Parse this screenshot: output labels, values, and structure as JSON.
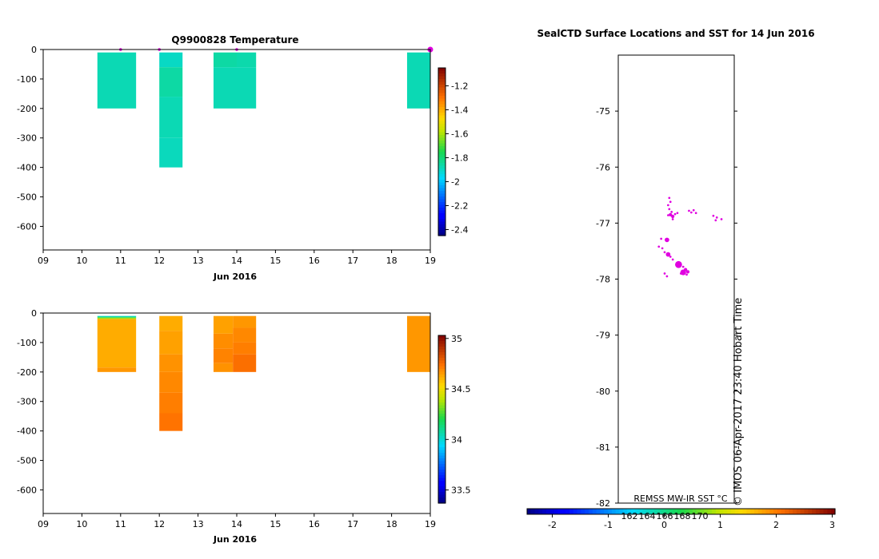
{
  "chart_data": [
    {
      "type": "heatmap",
      "title": "Q9900828  Temperature",
      "xlabel": "Jun 2016",
      "ylabel": "",
      "x_ticks": [
        "09",
        "10",
        "11",
        "12",
        "13",
        "14",
        "15",
        "16",
        "17",
        "18",
        "19"
      ],
      "xlim": [
        9,
        19
      ],
      "y_ticks": [
        0,
        -100,
        -200,
        -300,
        -400,
        -500,
        -600
      ],
      "ylim": [
        -680,
        0
      ],
      "colorbar": {
        "ticks": [
          -1.2,
          -1.4,
          -1.6,
          -1.8,
          -2,
          -2.2,
          -2.4
        ],
        "range": [
          -2.45,
          -1.05
        ]
      },
      "profile_markers_day": [
        11.0,
        12.0,
        14.0,
        19.0
      ],
      "profiles": [
        {
          "x0": 10.4,
          "x1": 11.4,
          "cells": [
            {
              "top": -10,
              "bottom": -200,
              "value": -1.88
            }
          ]
        },
        {
          "x0": 12.0,
          "x1": 12.6,
          "cells": [
            {
              "top": -10,
              "bottom": -60,
              "value": -1.9
            },
            {
              "top": -60,
              "bottom": -160,
              "value": -1.86
            },
            {
              "top": -160,
              "bottom": -300,
              "value": -1.88
            },
            {
              "top": -300,
              "bottom": -400,
              "value": -1.89
            }
          ]
        },
        {
          "x0": 13.4,
          "x1": 14.0,
          "cells": [
            {
              "top": -10,
              "bottom": -60,
              "value": -1.86
            },
            {
              "top": -60,
              "bottom": -200,
              "value": -1.88
            }
          ]
        },
        {
          "x0": 14.0,
          "x1": 14.5,
          "cells": [
            {
              "top": -10,
              "bottom": -60,
              "value": -1.87
            },
            {
              "top": -60,
              "bottom": -200,
              "value": -1.88
            }
          ]
        },
        {
          "x0": 18.4,
          "x1": 19.0,
          "cells": [
            {
              "top": -10,
              "bottom": -200,
              "value": -1.88
            }
          ]
        }
      ]
    },
    {
      "type": "heatmap",
      "title": "",
      "xlabel": "Jun 2016",
      "ylabel": "",
      "x_ticks": [
        "09",
        "10",
        "11",
        "12",
        "13",
        "14",
        "15",
        "16",
        "17",
        "18",
        "19"
      ],
      "xlim": [
        9,
        19
      ],
      "y_ticks": [
        0,
        -100,
        -200,
        -300,
        -400,
        -500,
        -600
      ],
      "ylim": [
        -680,
        0
      ],
      "colorbar": {
        "ticks": [
          35,
          34.5,
          34,
          33.5
        ],
        "range": [
          33.37,
          35.03
        ]
      },
      "profiles": [
        {
          "x0": 10.4,
          "x1": 11.4,
          "cells": [
            {
              "top": -10,
              "bottom": -15,
              "value": 34.05
            },
            {
              "top": -15,
              "bottom": -20,
              "value": 34.35
            },
            {
              "top": -20,
              "bottom": -185,
              "value": 34.62
            },
            {
              "top": -185,
              "bottom": -200,
              "value": 34.66
            }
          ]
        },
        {
          "x0": 12.0,
          "x1": 12.6,
          "cells": [
            {
              "top": -10,
              "bottom": -60,
              "value": 34.62
            },
            {
              "top": -60,
              "bottom": -140,
              "value": 34.64
            },
            {
              "top": -140,
              "bottom": -200,
              "value": 34.67
            },
            {
              "top": -200,
              "bottom": -270,
              "value": 34.69
            },
            {
              "top": -270,
              "bottom": -340,
              "value": 34.71
            },
            {
              "top": -340,
              "bottom": -400,
              "value": 34.73
            }
          ]
        },
        {
          "x0": 13.4,
          "x1": 13.9,
          "cells": [
            {
              "top": -10,
              "bottom": -70,
              "value": 34.64
            },
            {
              "top": -70,
              "bottom": -120,
              "value": 34.68
            },
            {
              "top": -120,
              "bottom": -170,
              "value": 34.7
            },
            {
              "top": -170,
              "bottom": -200,
              "value": 34.67
            }
          ]
        },
        {
          "x0": 13.9,
          "x1": 14.5,
          "cells": [
            {
              "top": -10,
              "bottom": -50,
              "value": 34.66
            },
            {
              "top": -50,
              "bottom": -100,
              "value": 34.69
            },
            {
              "top": -100,
              "bottom": -140,
              "value": 34.71
            },
            {
              "top": -140,
              "bottom": -200,
              "value": 34.74
            }
          ]
        },
        {
          "x0": 18.4,
          "x1": 19.0,
          "cells": [
            {
              "top": -10,
              "bottom": -200,
              "value": 34.66
            }
          ]
        }
      ]
    },
    {
      "type": "scatter",
      "title": "SealCTD Surface Locations and SST for 14 Jun 2016",
      "y_ticks": [
        -75,
        -76,
        -77,
        -78,
        -79,
        -80,
        -81,
        -82
      ],
      "ylim": [
        -82,
        -74
      ],
      "xlim": [
        0,
        1
      ],
      "side_label": "© IMOS 06-Apr-2017 23:40 Hobart Time",
      "sst_label": "REMSS MW-IR SST °C",
      "contour_labels": [
        "162",
        "164",
        "166",
        "168",
        "170"
      ],
      "colorbar": {
        "ticks": [
          -2,
          -1,
          0,
          1,
          2,
          3
        ],
        "range": [
          -2.45,
          3.05
        ]
      },
      "points": [
        {
          "x": 0.44,
          "y": -76.55,
          "size": 1
        },
        {
          "x": 0.45,
          "y": -76.62,
          "size": 1
        },
        {
          "x": 0.43,
          "y": -76.68,
          "size": 1
        },
        {
          "x": 0.44,
          "y": -76.75,
          "size": 1
        },
        {
          "x": 0.46,
          "y": -76.8,
          "size": 1
        },
        {
          "x": 0.45,
          "y": -76.85,
          "size": 2
        },
        {
          "x": 0.47,
          "y": -76.88,
          "size": 2
        },
        {
          "x": 0.49,
          "y": -76.84,
          "size": 1
        },
        {
          "x": 0.51,
          "y": -76.82,
          "size": 1
        },
        {
          "x": 0.47,
          "y": -76.93,
          "size": 1
        },
        {
          "x": 0.43,
          "y": -76.86,
          "size": 1
        },
        {
          "x": 0.61,
          "y": -76.78,
          "size": 1
        },
        {
          "x": 0.63,
          "y": -76.81,
          "size": 1
        },
        {
          "x": 0.65,
          "y": -76.77,
          "size": 1
        },
        {
          "x": 0.67,
          "y": -76.82,
          "size": 1
        },
        {
          "x": 0.82,
          "y": -76.87,
          "size": 1
        },
        {
          "x": 0.85,
          "y": -76.9,
          "size": 1
        },
        {
          "x": 0.89,
          "y": -76.93,
          "size": 1
        },
        {
          "x": 0.84,
          "y": -76.95,
          "size": 1
        },
        {
          "x": 0.42,
          "y": -77.3,
          "size": 3
        },
        {
          "x": 0.37,
          "y": -77.28,
          "size": 1
        },
        {
          "x": 0.35,
          "y": -77.42,
          "size": 1
        },
        {
          "x": 0.38,
          "y": -77.45,
          "size": 1
        },
        {
          "x": 0.4,
          "y": -77.52,
          "size": 1
        },
        {
          "x": 0.43,
          "y": -77.56,
          "size": 3
        },
        {
          "x": 0.45,
          "y": -77.6,
          "size": 1
        },
        {
          "x": 0.47,
          "y": -77.65,
          "size": 1
        },
        {
          "x": 0.52,
          "y": -77.74,
          "size": 5
        },
        {
          "x": 0.56,
          "y": -77.78,
          "size": 1
        },
        {
          "x": 0.58,
          "y": -77.83,
          "size": 2
        },
        {
          "x": 0.56,
          "y": -77.88,
          "size": 4
        },
        {
          "x": 0.6,
          "y": -77.87,
          "size": 2
        },
        {
          "x": 0.54,
          "y": -77.9,
          "size": 1
        },
        {
          "x": 0.59,
          "y": -77.92,
          "size": 1
        },
        {
          "x": 0.4,
          "y": -77.9,
          "size": 1
        },
        {
          "x": 0.42,
          "y": -77.95,
          "size": 1
        }
      ]
    }
  ]
}
